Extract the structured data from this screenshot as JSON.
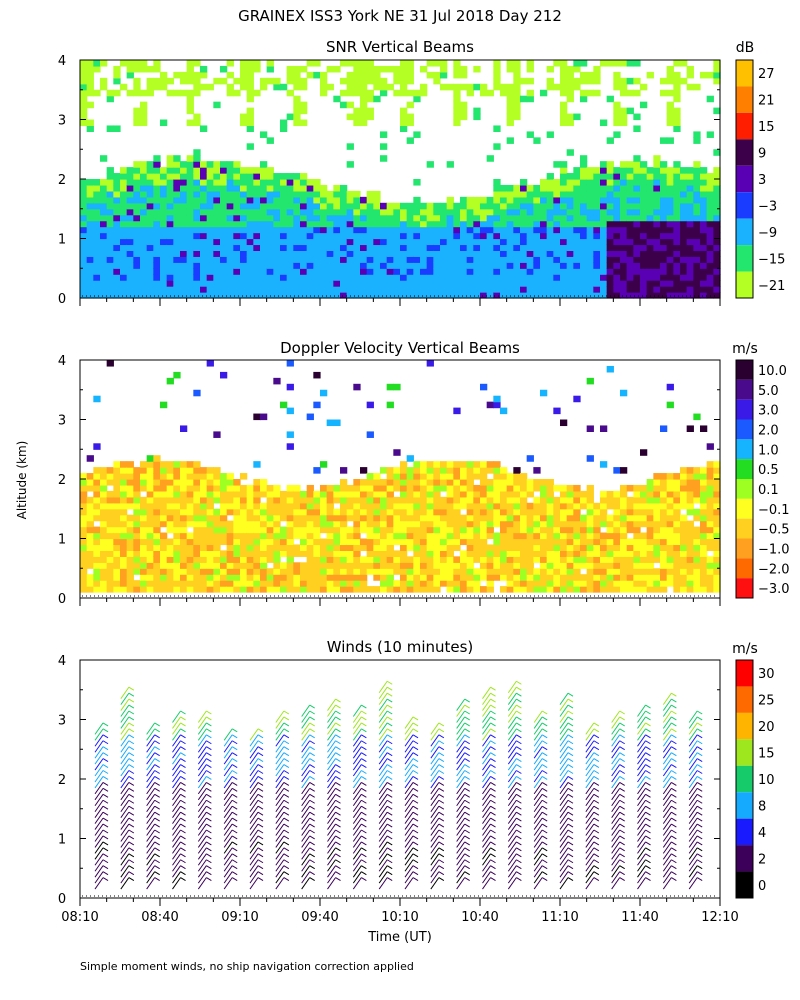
{
  "figure": {
    "title": "GRAINEX ISS3 York NE  31 Jul 2018 Day 212",
    "footnote": "Simple moment winds, no ship navigation correction applied",
    "shared_ylabel": "Altitude (km)",
    "shared_xlabel": "Time (UT)"
  },
  "chart_data": [
    {
      "type": "heatmap",
      "id": "snr",
      "title": "SNR Vertical Beams",
      "colorbar_unit": "dB",
      "colorbar_labels": [
        "27",
        "21",
        "15",
        "9",
        "3",
        "−3",
        "−9",
        "−15",
        "−21"
      ],
      "colorbar_colors": [
        "#ffc000",
        "#ff8000",
        "#ff1e00",
        "#3c004a",
        "#5a00b4",
        "#1a3cff",
        "#1ab2ff",
        "#22e66e",
        "#b4ff24"
      ],
      "ylim": [
        0,
        4
      ],
      "yticks": [
        "0",
        "1",
        "2",
        "3",
        "4"
      ],
      "time_range": [
        "08:10",
        "12:10"
      ],
      "x_tick_labels_shown": false
    },
    {
      "type": "heatmap",
      "id": "doppler",
      "title": "Doppler Velocity Vertical Beams",
      "colorbar_unit": "m/s",
      "colorbar_labels": [
        "10.0",
        "5.0",
        "3.0",
        "2.0",
        "1.0",
        "0.5",
        "0.1",
        "−0.1",
        "−0.5",
        "−1.0",
        "−2.0",
        "−3.0"
      ],
      "colorbar_colors": [
        "#2a0030",
        "#4a0a8c",
        "#3a1ae6",
        "#1a5aff",
        "#16b4ff",
        "#22dd22",
        "#9eff22",
        "#ffff20",
        "#ffd020",
        "#ffa020",
        "#ff6a00",
        "#ff1010"
      ],
      "ylim": [
        0,
        4
      ],
      "yticks": [
        "0",
        "1",
        "2",
        "3",
        "4"
      ],
      "time_range": [
        "08:10",
        "12:10"
      ],
      "x_tick_labels_shown": false
    },
    {
      "type": "scatter",
      "id": "winds",
      "title": "Winds (10 minutes)",
      "colorbar_unit": "m/s",
      "colorbar_labels": [
        "30",
        "25",
        "20",
        "15",
        "10",
        "8",
        "4",
        "2",
        "0"
      ],
      "colorbar_colors": [
        "#ff0000",
        "#ff6a00",
        "#ffb400",
        "#9ee61e",
        "#16cc6a",
        "#16aaff",
        "#1a1aff",
        "#3c005a",
        "#000000"
      ],
      "ylim": [
        0,
        4
      ],
      "yticks": [
        "0",
        "1",
        "2",
        "3",
        "4"
      ],
      "xlabel": "Time (UT)",
      "xticks": [
        "08:10",
        "08:40",
        "09:10",
        "09:40",
        "10:10",
        "10:40",
        "11:10",
        "11:40",
        "12:10"
      ],
      "profiles_per_hour": 6
    }
  ]
}
